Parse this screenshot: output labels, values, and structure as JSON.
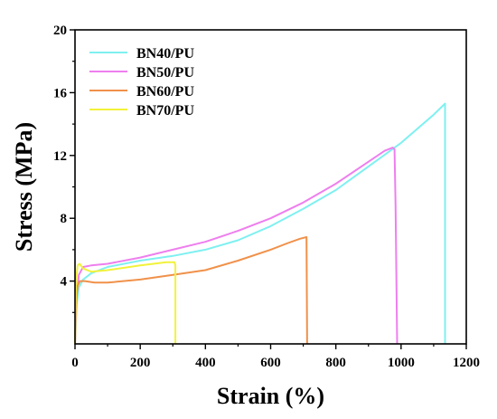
{
  "chart_data": {
    "type": "line",
    "title": "",
    "xlabel": "Strain (%)",
    "ylabel": "Stress (MPa)",
    "xlim": [
      0,
      1200
    ],
    "ylim": [
      0,
      20
    ],
    "xticks": [
      0,
      200,
      400,
      600,
      800,
      1000,
      1200
    ],
    "yticks": [
      4,
      8,
      12,
      16,
      20
    ],
    "grid": false,
    "legend_position": "top-left",
    "series": [
      {
        "name": "BN40/PU",
        "color": "#7FF0F0",
        "x": [
          0,
          5,
          12,
          25,
          50,
          100,
          200,
          300,
          400,
          500,
          600,
          700,
          800,
          900,
          1000,
          1100,
          1135,
          1135
        ],
        "y": [
          0,
          2.5,
          3.6,
          4.1,
          4.5,
          4.9,
          5.3,
          5.6,
          6.0,
          6.6,
          7.5,
          8.6,
          9.8,
          11.3,
          12.8,
          14.6,
          15.3,
          0
        ]
      },
      {
        "name": "BN50/PU",
        "color": "#EE7FEE",
        "x": [
          0,
          5,
          12,
          25,
          50,
          100,
          200,
          300,
          400,
          500,
          600,
          700,
          800,
          900,
          950,
          975,
          980,
          983,
          988
        ],
        "y": [
          0,
          3.0,
          4.4,
          4.9,
          5.0,
          5.1,
          5.5,
          6.0,
          6.5,
          7.2,
          8.0,
          9.0,
          10.2,
          11.6,
          12.3,
          12.5,
          12.4,
          9.0,
          0
        ]
      },
      {
        "name": "BN60/PU",
        "color": "#F0914A",
        "x": [
          0,
          3,
          8,
          15,
          30,
          60,
          100,
          200,
          300,
          400,
          500,
          600,
          650,
          690,
          710,
          712
        ],
        "y": [
          0,
          2.8,
          3.7,
          4.0,
          4.0,
          3.9,
          3.9,
          4.1,
          4.4,
          4.7,
          5.3,
          6.0,
          6.4,
          6.7,
          6.8,
          0
        ]
      },
      {
        "name": "BN70/PU",
        "color": "#F2F23A",
        "x": [
          0,
          3,
          8,
          14,
          25,
          50,
          100,
          200,
          280,
          305,
          308,
          308
        ],
        "y": [
          0,
          4.0,
          5.0,
          5.1,
          4.8,
          4.6,
          4.7,
          5.0,
          5.2,
          5.2,
          5.0,
          0
        ]
      }
    ]
  }
}
